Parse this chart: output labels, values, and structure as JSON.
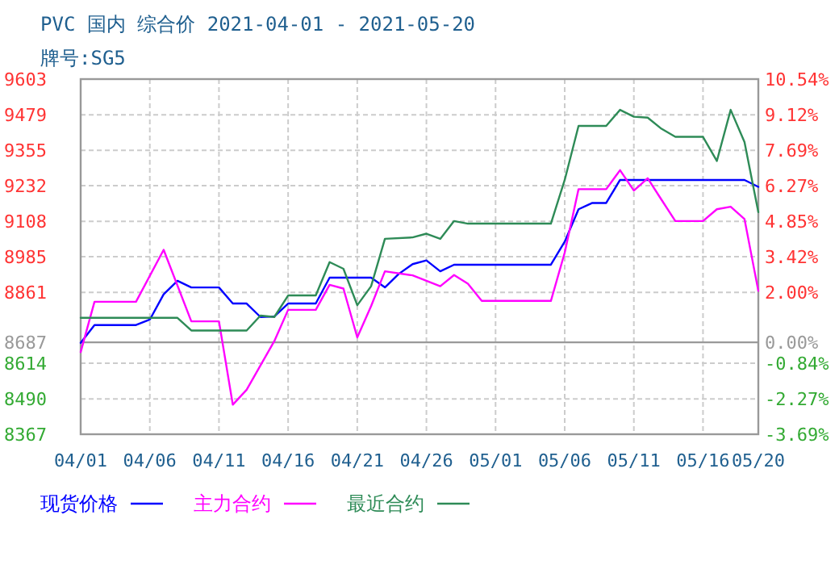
{
  "chart_data": {
    "type": "line",
    "title": "PVC 国内 综合价 2021-04-01 - 2021-05-20",
    "subtitle": "牌号:SG5",
    "xlim": [
      "2021-04-01",
      "2021-05-20"
    ],
    "xticks": [
      {
        "value": "2021-04-01",
        "label": "04/01"
      },
      {
        "value": "2021-04-06",
        "label": "04/06"
      },
      {
        "value": "2021-04-11",
        "label": "04/11"
      },
      {
        "value": "2021-04-16",
        "label": "04/16"
      },
      {
        "value": "2021-04-21",
        "label": "04/21"
      },
      {
        "value": "2021-04-26",
        "label": "04/26"
      },
      {
        "value": "2021-05-01",
        "label": "05/01"
      },
      {
        "value": "2021-05-06",
        "label": "05/06"
      },
      {
        "value": "2021-05-11",
        "label": "05/11"
      },
      {
        "value": "2021-05-16",
        "label": "05/16"
      },
      {
        "value": "2021-05-20",
        "label": "05/20"
      }
    ],
    "ylim": [
      8367,
      9603
    ],
    "yticks": [
      8367,
      8490,
      8614,
      8687,
      8861,
      8985,
      9108,
      9232,
      9355,
      9479,
      9603
    ],
    "y2lim": [
      -3.69,
      10.54
    ],
    "y2ticks": [
      {
        "value": -3.69,
        "label": "-3.69%"
      },
      {
        "value": -2.27,
        "label": "-2.27%"
      },
      {
        "value": -0.84,
        "label": "-0.84%"
      },
      {
        "value": 0,
        "label": "0.00%"
      },
      {
        "value": 2,
        "label": "2.00%"
      },
      {
        "value": 3.42,
        "label": "3.42%"
      },
      {
        "value": 4.85,
        "label": "4.85%"
      },
      {
        "value": 6.27,
        "label": "6.27%"
      },
      {
        "value": 7.69,
        "label": "7.69%"
      },
      {
        "value": 9.12,
        "label": "9.12%"
      },
      {
        "value": 10.54,
        "label": "10.54%"
      }
    ],
    "ref_lines": [
      {
        "axis": "y",
        "value": 8687,
        "color": "#999999"
      }
    ],
    "grid": true,
    "legend": "bottom",
    "series": [
      {
        "name": "现货价格",
        "color": "#0000ff",
        "x": [
          "2021-04-01",
          "2021-04-02",
          "2021-04-05",
          "2021-04-06",
          "2021-04-07",
          "2021-04-08",
          "2021-04-09",
          "2021-04-11",
          "2021-04-12",
          "2021-04-13",
          "2021-04-14",
          "2021-04-15",
          "2021-04-16",
          "2021-04-18",
          "2021-04-19",
          "2021-04-22",
          "2021-04-23",
          "2021-04-24",
          "2021-04-25",
          "2021-04-26",
          "2021-04-27",
          "2021-04-28",
          "2021-05-05",
          "2021-05-06",
          "2021-05-07",
          "2021-05-08",
          "2021-05-09",
          "2021-05-10",
          "2021-05-19",
          "2021-05-20"
        ],
        "values": [
          8685,
          8747,
          8747,
          8766,
          8854,
          8901,
          8878,
          8878,
          8822,
          8822,
          8775,
          8777,
          8822,
          8822,
          8912,
          8912,
          8878,
          8925,
          8959,
          8972,
          8934,
          8957,
          8957,
          9037,
          9150,
          9172,
          9172,
          9252,
          9252,
          9228
        ]
      },
      {
        "name": "主力合约",
        "color": "#ff00ff",
        "x": [
          "2021-04-01",
          "2021-04-02",
          "2021-04-05",
          "2021-04-07",
          "2021-04-09",
          "2021-04-11",
          "2021-04-12",
          "2021-04-13",
          "2021-04-15",
          "2021-04-16",
          "2021-04-18",
          "2021-04-19",
          "2021-04-20",
          "2021-04-21",
          "2021-04-22",
          "2021-04-23",
          "2021-04-25",
          "2021-04-27",
          "2021-04-28",
          "2021-04-29",
          "2021-04-30",
          "2021-05-05",
          "2021-05-06",
          "2021-05-07",
          "2021-05-09",
          "2021-05-10",
          "2021-05-11",
          "2021-05-12",
          "2021-05-13",
          "2021-05-14",
          "2021-05-16",
          "2021-05-17",
          "2021-05-18",
          "2021-05-19",
          "2021-05-20"
        ],
        "values": [
          8653,
          8828,
          8828,
          9009,
          8760,
          8760,
          8470,
          8522,
          8691,
          8800,
          8800,
          8887,
          8874,
          8704,
          8813,
          8934,
          8920,
          8882,
          8921,
          8891,
          8831,
          8831,
          8999,
          9220,
          9220,
          9286,
          9215,
          9258,
          9183,
          9109,
          9109,
          9150,
          9159,
          9116,
          8866
        ]
      },
      {
        "name": "最近合约",
        "color": "#2e8b57",
        "x": [
          "2021-04-01",
          "2021-04-08",
          "2021-04-09",
          "2021-04-13",
          "2021-04-14",
          "2021-04-15",
          "2021-04-16",
          "2021-04-18",
          "2021-04-19",
          "2021-04-20",
          "2021-04-21",
          "2021-04-22",
          "2021-04-23",
          "2021-04-25",
          "2021-04-26",
          "2021-04-27",
          "2021-04-28",
          "2021-04-29",
          "2021-05-05",
          "2021-05-06",
          "2021-05-07",
          "2021-05-09",
          "2021-05-10",
          "2021-05-11",
          "2021-05-12",
          "2021-05-13",
          "2021-05-14",
          "2021-05-16",
          "2021-05-17",
          "2021-05-18",
          "2021-05-19",
          "2021-05-20"
        ],
        "values": [
          8772,
          8772,
          8728,
          8728,
          8780,
          8775,
          8850,
          8850,
          8966,
          8943,
          8816,
          8882,
          9047,
          9052,
          9065,
          9047,
          9109,
          9100,
          9100,
          9252,
          9440,
          9440,
          9496,
          9472,
          9469,
          9430,
          9402,
          9402,
          9318,
          9496,
          9384,
          9140
        ]
      }
    ]
  }
}
